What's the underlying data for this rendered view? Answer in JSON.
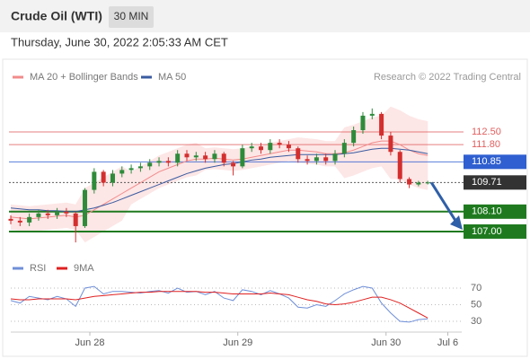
{
  "chart_data": [
    {
      "type": "candlestick",
      "title": "Crude Oil (WTI)",
      "interval": "30 MIN",
      "subtitle": "Thursday, June 30, 2022 2:05:33 AM CET",
      "source": "Research © 2022 Trading Central",
      "x": [
        0,
        3,
        6,
        9,
        12,
        15,
        18,
        21,
        24,
        27,
        30,
        33,
        36,
        39,
        42,
        45,
        48,
        51,
        54,
        57,
        60,
        63,
        66,
        69,
        72,
        75,
        78,
        81,
        84,
        87,
        90,
        93,
        96,
        99,
        102,
        105,
        108,
        111,
        114,
        117,
        120,
        123,
        126,
        129,
        132,
        135
      ],
      "open": [
        107.7,
        107.6,
        107.5,
        107.8,
        108.0,
        107.9,
        108.1,
        108.0,
        107.3,
        109.3,
        110.3,
        109.7,
        110.2,
        110.4,
        110.5,
        110.6,
        110.8,
        110.9,
        110.8,
        111.3,
        111.1,
        111.2,
        111.0,
        111.3,
        110.8,
        110.6,
        111.6,
        111.7,
        111.5,
        111.9,
        111.8,
        111.6,
        111.0,
        110.9,
        111.1,
        110.9,
        111.3,
        111.9,
        112.6,
        113.4,
        113.5,
        112.3,
        111.4,
        109.9,
        109.6,
        109.7
      ],
      "high": [
        107.9,
        107.8,
        108.0,
        108.2,
        108.2,
        108.3,
        108.3,
        108.1,
        109.4,
        110.5,
        110.4,
        110.4,
        110.6,
        110.7,
        110.8,
        111.0,
        111.1,
        111.1,
        111.5,
        111.5,
        111.4,
        111.4,
        111.5,
        111.4,
        110.9,
        111.8,
        111.9,
        111.9,
        112.1,
        112.1,
        112.0,
        111.7,
        111.2,
        111.3,
        111.3,
        111.5,
        112.1,
        112.8,
        113.6,
        113.8,
        113.6,
        112.5,
        111.5,
        110.0,
        109.8,
        109.8
      ],
      "low": [
        107.4,
        107.3,
        107.3,
        107.6,
        107.7,
        107.7,
        107.8,
        106.4,
        107.2,
        109.1,
        109.5,
        109.5,
        110.0,
        110.2,
        110.3,
        110.4,
        110.6,
        110.6,
        110.6,
        110.9,
        110.9,
        110.8,
        110.8,
        110.6,
        110.1,
        110.5,
        111.4,
        111.3,
        111.3,
        111.6,
        111.4,
        110.8,
        110.7,
        110.7,
        110.7,
        110.7,
        111.1,
        111.7,
        112.4,
        113.2,
        112.1,
        111.2,
        109.7,
        109.4,
        109.5,
        109.6
      ],
      "close": [
        107.6,
        107.5,
        107.8,
        108.0,
        107.9,
        108.1,
        108.0,
        107.3,
        109.3,
        110.3,
        109.7,
        110.2,
        110.4,
        110.5,
        110.6,
        110.8,
        110.9,
        110.8,
        111.3,
        111.1,
        111.2,
        111.0,
        111.3,
        110.8,
        110.6,
        111.6,
        111.7,
        111.5,
        111.9,
        111.8,
        111.6,
        111.0,
        110.9,
        111.1,
        110.9,
        111.3,
        111.9,
        112.6,
        113.4,
        113.5,
        112.3,
        111.4,
        109.9,
        109.6,
        109.7,
        109.71
      ],
      "up_color": "#2e8b3a",
      "down_color": "#d32f2f",
      "series": [
        {
          "name": "MA 20 + Bollinger Bands",
          "color": "#f28b8b",
          "values": [
            107.8,
            107.75,
            107.7,
            107.75,
            107.8,
            107.85,
            107.9,
            107.8,
            107.9,
            108.2,
            108.5,
            108.8,
            109.1,
            109.4,
            109.7,
            110.0,
            110.3,
            110.5,
            110.7,
            110.9,
            111.0,
            111.0,
            111.05,
            111.0,
            110.95,
            111.0,
            111.1,
            111.2,
            111.3,
            111.4,
            111.5,
            111.5,
            111.45,
            111.4,
            111.3,
            111.3,
            111.35,
            111.5,
            111.7,
            111.9,
            112.0,
            112.0,
            111.8,
            111.5,
            111.3,
            111.2
          ],
          "upper": [
            108.5,
            108.45,
            108.4,
            108.45,
            108.5,
            108.55,
            108.6,
            108.5,
            109.4,
            109.7,
            110.0,
            110.3,
            110.6,
            110.3,
            110.6,
            110.9,
            111.2,
            111.4,
            111.6,
            111.8,
            111.9,
            111.6,
            111.65,
            111.6,
            111.55,
            111.6,
            111.7,
            111.8,
            111.9,
            112.0,
            112.1,
            112.2,
            112.15,
            112.1,
            112.0,
            112.0,
            112.75,
            112.9,
            113.1,
            113.3,
            113.4,
            113.9,
            113.7,
            113.4,
            113.2,
            113.1
          ],
          "lower": [
            107.1,
            107.05,
            107.0,
            107.05,
            107.1,
            107.15,
            107.2,
            107.1,
            106.4,
            106.7,
            107.0,
            107.3,
            107.6,
            108.5,
            108.8,
            109.1,
            109.4,
            109.6,
            109.8,
            110.0,
            110.1,
            110.4,
            110.45,
            110.4,
            110.35,
            110.4,
            110.5,
            110.6,
            110.7,
            110.8,
            110.9,
            110.8,
            110.75,
            110.7,
            110.6,
            110.6,
            109.95,
            110.1,
            110.3,
            110.5,
            110.6,
            109.9,
            109.9,
            109.6,
            109.4,
            109.3
          ],
          "band_color": "#fde0e0"
        },
        {
          "name": "MA 50",
          "color": "#3a5ba0",
          "values": [
            108.3,
            108.25,
            108.2,
            108.2,
            108.15,
            108.15,
            108.1,
            108.1,
            108.2,
            108.3,
            108.45,
            108.6,
            108.8,
            109.0,
            109.2,
            109.4,
            109.6,
            109.8,
            110.0,
            110.2,
            110.35,
            110.5,
            110.6,
            110.7,
            110.75,
            110.85,
            110.95,
            111.0,
            111.1,
            111.15,
            111.2,
            111.25,
            111.25,
            111.25,
            111.25,
            111.25,
            111.3,
            111.35,
            111.45,
            111.55,
            111.6,
            111.6,
            111.55,
            111.5,
            111.4,
            111.3
          ]
        }
      ],
      "levels": [
        {
          "value": 112.5,
          "label": "112.50",
          "color": "#e06060",
          "style": "text"
        },
        {
          "value": 111.8,
          "label": "111.80",
          "color": "#e06060",
          "style": "text"
        },
        {
          "value": 110.85,
          "label": "110.85",
          "color": "#2f5fd0",
          "style": "box"
        },
        {
          "value": 109.71,
          "label": "109.71",
          "color": "#333333",
          "style": "box"
        },
        {
          "value": 108.1,
          "label": "108.10",
          "color": "#1f7a1f",
          "style": "box"
        },
        {
          "value": 107.0,
          "label": "107.00",
          "color": "#1f7a1f",
          "style": "box"
        }
      ],
      "xlim": [
        0,
        146
      ],
      "ylim": [
        105.76,
        115.08
      ]
    },
    {
      "type": "line",
      "x": [
        0,
        3,
        6,
        9,
        12,
        15,
        18,
        21,
        24,
        27,
        30,
        33,
        36,
        39,
        42,
        45,
        48,
        51,
        54,
        57,
        60,
        63,
        66,
        69,
        72,
        75,
        78,
        81,
        84,
        87,
        90,
        93,
        96,
        99,
        102,
        105,
        108,
        111,
        114,
        117,
        120,
        123,
        126,
        129,
        132,
        135
      ],
      "series": [
        {
          "name": "RSI",
          "color": "#6f8fd8",
          "values": [
            55,
            52,
            60,
            58,
            56,
            60,
            57,
            48,
            70,
            72,
            63,
            66,
            66,
            65,
            64,
            66,
            67,
            64,
            70,
            65,
            66,
            62,
            66,
            58,
            55,
            68,
            66,
            62,
            67,
            63,
            58,
            47,
            46,
            50,
            48,
            55,
            63,
            68,
            72,
            70,
            52,
            40,
            30,
            29,
            32,
            33
          ]
        },
        {
          "name": "9MA",
          "color": "#e02020",
          "values": [
            57,
            56,
            56,
            57,
            57,
            57,
            57,
            56,
            58,
            60,
            61,
            62,
            63,
            64,
            65,
            65,
            66,
            66,
            66,
            66,
            66,
            65,
            65,
            64,
            63,
            63,
            63,
            63,
            64,
            63,
            62,
            59,
            56,
            54,
            51,
            50,
            51,
            53,
            56,
            59,
            59,
            56,
            52,
            46,
            40,
            34
          ]
        }
      ],
      "xlim": [
        0,
        146
      ],
      "ylim": [
        0,
        100
      ],
      "yticks": [
        30,
        50,
        70
      ],
      "xticks": [
        {
          "value": 25.6,
          "label": "Jun 28"
        },
        {
          "value": 73.5,
          "label": "Jun 29"
        },
        {
          "value": 121.5,
          "label": "Jun 30"
        },
        {
          "value": 141.5,
          "label": "Jul 6"
        }
      ]
    }
  ]
}
